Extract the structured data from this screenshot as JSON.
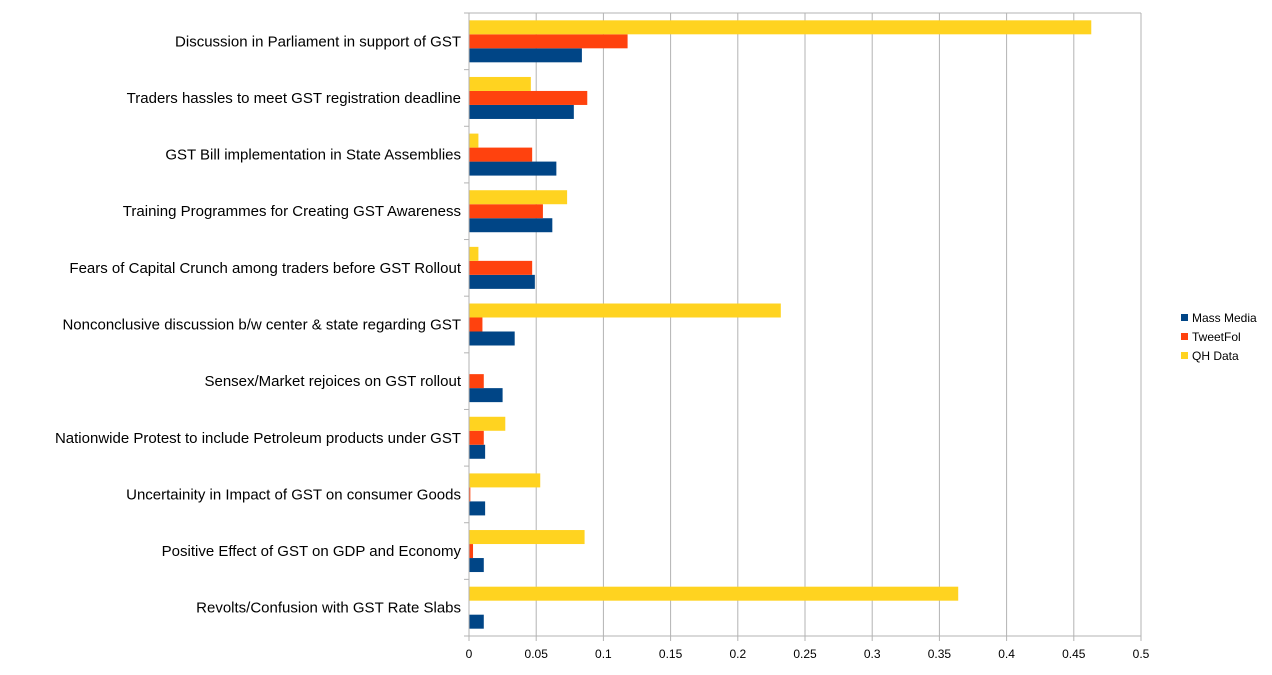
{
  "chart_data": {
    "type": "bar",
    "orientation": "horizontal",
    "categories": [
      "Discussion in Parliament in support of GST",
      "Traders hassles to meet GST registration deadline",
      "GST Bill implementation in State Assemblies",
      "Training Programmes for Creating GST Awareness",
      "Fears of Capital Crunch among traders before GST Rollout",
      "Nonconclusive discussion b/w center & state regarding GST",
      "Sensex/Market rejoices on GST rollout",
      "Nationwide Protest to include Petroleum products under GST",
      "Uncertainity in Impact of GST on consumer Goods",
      "Positive Effect of GST on GDP and Economy",
      "Revolts/Confusion with GST Rate Slabs"
    ],
    "series": [
      {
        "name": "Mass Media",
        "color": "#004586",
        "values": [
          0.084,
          0.078,
          0.065,
          0.062,
          0.049,
          0.034,
          0.025,
          0.012,
          0.012,
          0.011,
          0.011
        ]
      },
      {
        "name": "TweetFol",
        "color": "#ff420e",
        "values": [
          0.118,
          0.088,
          0.047,
          0.055,
          0.047,
          0.01,
          0.011,
          0.011,
          0.001,
          0.003,
          0.0
        ]
      },
      {
        "name": "QH Data",
        "color": "#ffd320",
        "values": [
          0.463,
          0.046,
          0.007,
          0.073,
          0.007,
          0.232,
          0.0,
          0.027,
          0.053,
          0.086,
          0.364
        ]
      }
    ],
    "xlim": [
      0,
      0.5
    ],
    "xticks": [
      "0",
      "0.05",
      "0.1",
      "0.15",
      "0.2",
      "0.25",
      "0.3",
      "0.35",
      "0.4",
      "0.45",
      "0.5"
    ],
    "grid": true,
    "legend_position": "right",
    "title": "",
    "xlabel": "",
    "ylabel": ""
  }
}
